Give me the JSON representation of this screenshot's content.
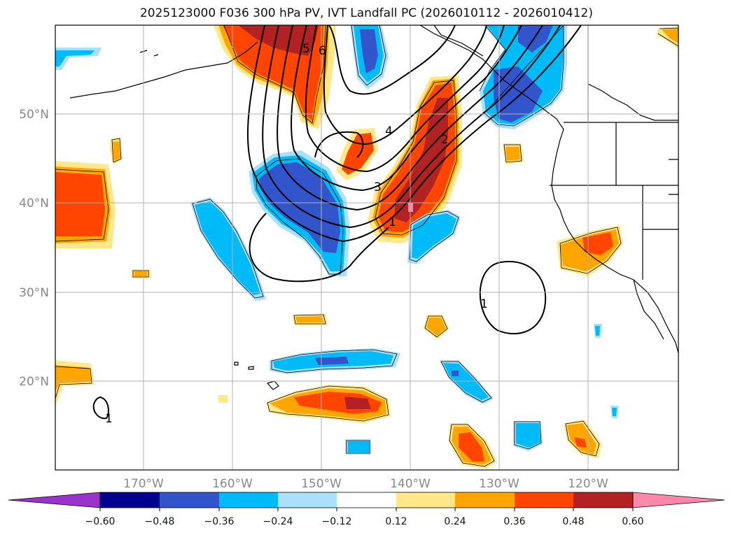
{
  "title": "2025123000 F036 300 hPa PV, IVT Landfall PC (2026010112 - 2026010412)",
  "map": {
    "lat_labels": [
      "50°N",
      "40°N",
      "30°N",
      "20°N"
    ],
    "lon_labels": [
      "170°W",
      "160°W",
      "150°W",
      "140°W",
      "130°W",
      "120°W"
    ],
    "contour_labels": [
      "6",
      "5",
      "4",
      "3",
      "2",
      "1",
      "1",
      "1"
    ]
  },
  "colorbar": {
    "tick_labels": [
      "−0.60",
      "−0.48",
      "−0.36",
      "−0.24",
      "−0.12",
      "0.12",
      "0.24",
      "0.36",
      "0.48",
      "0.60"
    ],
    "colors": [
      "#9933cc",
      "#000090",
      "#3355cc",
      "#00bbf8",
      "#aae0fa",
      "#ffffff",
      "#ffe78a",
      "#ffa500",
      "#ff4500",
      "#b22222",
      "#ff88aa"
    ]
  }
}
